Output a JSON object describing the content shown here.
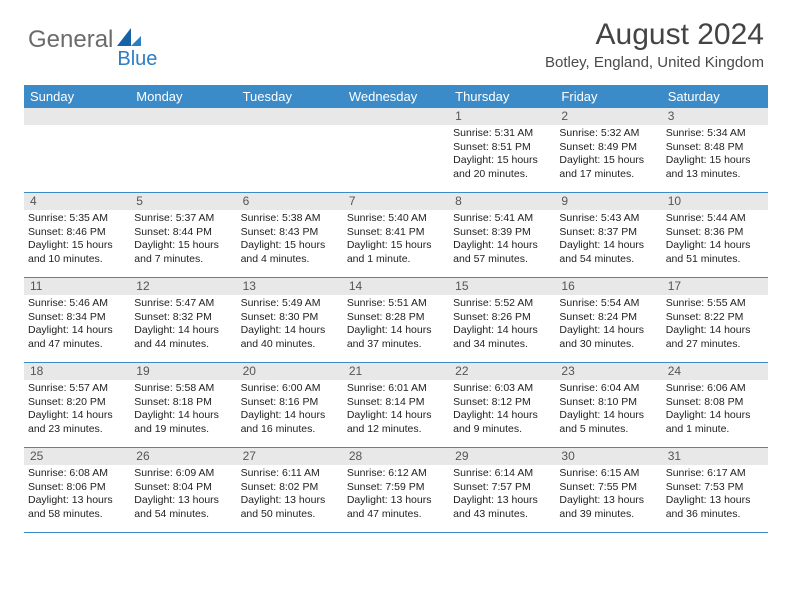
{
  "branding": {
    "logo_word1": "General",
    "logo_word2": "Blue",
    "logo_word1_color": "#6b6b6b",
    "logo_word2_color": "#2b7ec2",
    "triangle_color": "#1761a6"
  },
  "header": {
    "title": "August 2024",
    "location": "Botley, England, United Kingdom"
  },
  "colors": {
    "header_bar": "#3b8bc9",
    "header_text": "#ffffff",
    "daynum_bg": "#e8e8e8",
    "grid_line": "#3b8bc9",
    "body_text": "#222222"
  },
  "day_headers": [
    "Sunday",
    "Monday",
    "Tuesday",
    "Wednesday",
    "Thursday",
    "Friday",
    "Saturday"
  ],
  "weeks": [
    [
      {
        "blank": true
      },
      {
        "blank": true
      },
      {
        "blank": true
      },
      {
        "blank": true
      },
      {
        "n": "1",
        "sr": "5:31 AM",
        "ss": "8:51 PM",
        "dl": "15 hours and 20 minutes."
      },
      {
        "n": "2",
        "sr": "5:32 AM",
        "ss": "8:49 PM",
        "dl": "15 hours and 17 minutes."
      },
      {
        "n": "3",
        "sr": "5:34 AM",
        "ss": "8:48 PM",
        "dl": "15 hours and 13 minutes."
      }
    ],
    [
      {
        "n": "4",
        "sr": "5:35 AM",
        "ss": "8:46 PM",
        "dl": "15 hours and 10 minutes."
      },
      {
        "n": "5",
        "sr": "5:37 AM",
        "ss": "8:44 PM",
        "dl": "15 hours and 7 minutes."
      },
      {
        "n": "6",
        "sr": "5:38 AM",
        "ss": "8:43 PM",
        "dl": "15 hours and 4 minutes."
      },
      {
        "n": "7",
        "sr": "5:40 AM",
        "ss": "8:41 PM",
        "dl": "15 hours and 1 minute."
      },
      {
        "n": "8",
        "sr": "5:41 AM",
        "ss": "8:39 PM",
        "dl": "14 hours and 57 minutes."
      },
      {
        "n": "9",
        "sr": "5:43 AM",
        "ss": "8:37 PM",
        "dl": "14 hours and 54 minutes."
      },
      {
        "n": "10",
        "sr": "5:44 AM",
        "ss": "8:36 PM",
        "dl": "14 hours and 51 minutes."
      }
    ],
    [
      {
        "n": "11",
        "sr": "5:46 AM",
        "ss": "8:34 PM",
        "dl": "14 hours and 47 minutes."
      },
      {
        "n": "12",
        "sr": "5:47 AM",
        "ss": "8:32 PM",
        "dl": "14 hours and 44 minutes."
      },
      {
        "n": "13",
        "sr": "5:49 AM",
        "ss": "8:30 PM",
        "dl": "14 hours and 40 minutes."
      },
      {
        "n": "14",
        "sr": "5:51 AM",
        "ss": "8:28 PM",
        "dl": "14 hours and 37 minutes."
      },
      {
        "n": "15",
        "sr": "5:52 AM",
        "ss": "8:26 PM",
        "dl": "14 hours and 34 minutes."
      },
      {
        "n": "16",
        "sr": "5:54 AM",
        "ss": "8:24 PM",
        "dl": "14 hours and 30 minutes."
      },
      {
        "n": "17",
        "sr": "5:55 AM",
        "ss": "8:22 PM",
        "dl": "14 hours and 27 minutes."
      }
    ],
    [
      {
        "n": "18",
        "sr": "5:57 AM",
        "ss": "8:20 PM",
        "dl": "14 hours and 23 minutes."
      },
      {
        "n": "19",
        "sr": "5:58 AM",
        "ss": "8:18 PM",
        "dl": "14 hours and 19 minutes."
      },
      {
        "n": "20",
        "sr": "6:00 AM",
        "ss": "8:16 PM",
        "dl": "14 hours and 16 minutes."
      },
      {
        "n": "21",
        "sr": "6:01 AM",
        "ss": "8:14 PM",
        "dl": "14 hours and 12 minutes."
      },
      {
        "n": "22",
        "sr": "6:03 AM",
        "ss": "8:12 PM",
        "dl": "14 hours and 9 minutes."
      },
      {
        "n": "23",
        "sr": "6:04 AM",
        "ss": "8:10 PM",
        "dl": "14 hours and 5 minutes."
      },
      {
        "n": "24",
        "sr": "6:06 AM",
        "ss": "8:08 PM",
        "dl": "14 hours and 1 minute."
      }
    ],
    [
      {
        "n": "25",
        "sr": "6:08 AM",
        "ss": "8:06 PM",
        "dl": "13 hours and 58 minutes."
      },
      {
        "n": "26",
        "sr": "6:09 AM",
        "ss": "8:04 PM",
        "dl": "13 hours and 54 minutes."
      },
      {
        "n": "27",
        "sr": "6:11 AM",
        "ss": "8:02 PM",
        "dl": "13 hours and 50 minutes."
      },
      {
        "n": "28",
        "sr": "6:12 AM",
        "ss": "7:59 PM",
        "dl": "13 hours and 47 minutes."
      },
      {
        "n": "29",
        "sr": "6:14 AM",
        "ss": "7:57 PM",
        "dl": "13 hours and 43 minutes."
      },
      {
        "n": "30",
        "sr": "6:15 AM",
        "ss": "7:55 PM",
        "dl": "13 hours and 39 minutes."
      },
      {
        "n": "31",
        "sr": "6:17 AM",
        "ss": "7:53 PM",
        "dl": "13 hours and 36 minutes."
      }
    ]
  ],
  "labels": {
    "sunrise": "Sunrise:",
    "sunset": "Sunset:",
    "daylight": "Daylight:"
  }
}
